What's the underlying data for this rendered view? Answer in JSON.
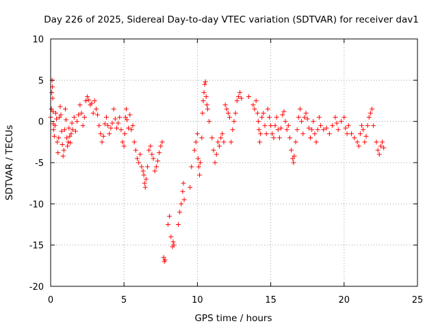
{
  "chart_data": {
    "type": "scatter",
    "title": "Day 226 of 2025, Sidereal Day-to-day VTEC variation (SDTVAR) for receiver dav1",
    "xlabel": "GPS time / hours",
    "ylabel": "SDTVAR / TECUs",
    "xlim": [
      0,
      25
    ],
    "ylim": [
      -20,
      10
    ],
    "xticks": [
      0,
      5,
      10,
      15,
      20,
      25
    ],
    "xtick_labels": [
      "0",
      "5",
      "10",
      "15",
      "20",
      "25"
    ],
    "yticks": [
      -20,
      -15,
      -10,
      -5,
      0,
      5,
      10
    ],
    "ytick_labels": [
      "-20",
      "-15",
      "-10",
      "-5",
      "0",
      "5",
      "10"
    ],
    "grid": true,
    "marker": "+",
    "series": [
      {
        "name": "dav1",
        "color": "#ff0000",
        "points": [
          [
            0.0,
            0.5
          ],
          [
            0.05,
            1.5
          ],
          [
            0.08,
            3.5
          ],
          [
            0.1,
            5.0
          ],
          [
            0.12,
            4.2
          ],
          [
            0.14,
            2.8
          ],
          [
            0.16,
            1.2
          ],
          [
            0.18,
            -0.3
          ],
          [
            0.2,
            -1.0
          ],
          [
            0.25,
            -1.8
          ],
          [
            0.3,
            -0.5
          ],
          [
            0.35,
            1.0
          ],
          [
            0.4,
            0.3
          ],
          [
            0.45,
            -2.5
          ],
          [
            0.5,
            -3.8
          ],
          [
            0.55,
            -2.0
          ],
          [
            0.6,
            0.5
          ],
          [
            0.65,
            1.8
          ],
          [
            0.7,
            0.8
          ],
          [
            0.75,
            -1.2
          ],
          [
            0.8,
            -2.8
          ],
          [
            0.85,
            -4.2
          ],
          [
            0.9,
            -3.5
          ],
          [
            0.95,
            -1.0
          ],
          [
            1.0,
            1.5
          ],
          [
            1.05,
            0.2
          ],
          [
            1.1,
            -2.0
          ],
          [
            1.15,
            -3.0
          ],
          [
            1.2,
            -2.5
          ],
          [
            1.25,
            -0.8
          ],
          [
            1.3,
            -1.8
          ],
          [
            1.35,
            -2.6
          ],
          [
            1.4,
            -1.5
          ],
          [
            1.45,
            -0.2
          ],
          [
            1.5,
            -1.0
          ],
          [
            1.6,
            0.5
          ],
          [
            1.7,
            -1.2
          ],
          [
            1.8,
            0.0
          ],
          [
            1.9,
            0.8
          ],
          [
            2.0,
            2.0
          ],
          [
            2.1,
            1.0
          ],
          [
            2.2,
            -0.5
          ],
          [
            2.3,
            0.5
          ],
          [
            2.4,
            2.5
          ],
          [
            2.5,
            3.0
          ],
          [
            2.6,
            2.6
          ],
          [
            2.7,
            2.0
          ],
          [
            2.8,
            2.2
          ],
          [
            2.9,
            1.0
          ],
          [
            3.0,
            2.5
          ],
          [
            3.1,
            1.5
          ],
          [
            3.2,
            0.8
          ],
          [
            3.3,
            -0.5
          ],
          [
            3.4,
            -1.5
          ],
          [
            3.5,
            -2.5
          ],
          [
            3.6,
            -1.8
          ],
          [
            3.7,
            -0.3
          ],
          [
            3.8,
            0.5
          ],
          [
            3.9,
            -0.5
          ],
          [
            4.0,
            -1.5
          ],
          [
            4.1,
            -0.8
          ],
          [
            4.2,
            -0.2
          ],
          [
            4.3,
            1.5
          ],
          [
            4.4,
            0.3
          ],
          [
            4.5,
            -0.8
          ],
          [
            4.6,
            -0.2
          ],
          [
            4.7,
            0.5
          ],
          [
            4.8,
            -1.0
          ],
          [
            4.9,
            -2.5
          ],
          [
            5.0,
            -3.0
          ],
          [
            5.05,
            -1.5
          ],
          [
            5.1,
            0.5
          ],
          [
            5.15,
            1.5
          ],
          [
            5.2,
            0.2
          ],
          [
            5.3,
            -0.8
          ],
          [
            5.4,
            0.8
          ],
          [
            5.5,
            -1.0
          ],
          [
            5.6,
            -0.5
          ],
          [
            5.7,
            -2.5
          ],
          [
            5.8,
            -3.5
          ],
          [
            5.9,
            -4.5
          ],
          [
            6.0,
            -5.0
          ],
          [
            6.1,
            -4.0
          ],
          [
            6.2,
            -5.5
          ],
          [
            6.3,
            -6.0
          ],
          [
            6.35,
            -6.5
          ],
          [
            6.4,
            -7.5
          ],
          [
            6.45,
            -8.0
          ],
          [
            6.5,
            -7.0
          ],
          [
            6.6,
            -5.5
          ],
          [
            6.7,
            -3.5
          ],
          [
            6.8,
            -3.0
          ],
          [
            6.9,
            -4.0
          ],
          [
            7.0,
            -4.5
          ],
          [
            7.1,
            -6.0
          ],
          [
            7.2,
            -5.5
          ],
          [
            7.3,
            -4.8
          ],
          [
            7.4,
            -3.8
          ],
          [
            7.5,
            -3.0
          ],
          [
            7.6,
            -2.5
          ],
          [
            7.7,
            -16.5
          ],
          [
            7.75,
            -17.0
          ],
          [
            7.8,
            -16.8
          ],
          [
            8.0,
            -12.5
          ],
          [
            8.1,
            -11.5
          ],
          [
            8.2,
            -14.0
          ],
          [
            8.3,
            -15.2
          ],
          [
            8.35,
            -14.6
          ],
          [
            8.4,
            -15.0
          ],
          [
            8.7,
            -12.5
          ],
          [
            8.8,
            -11.0
          ],
          [
            8.9,
            -10.0
          ],
          [
            9.0,
            -8.5
          ],
          [
            9.05,
            -7.5
          ],
          [
            9.1,
            -9.5
          ],
          [
            9.5,
            -8.0
          ],
          [
            9.6,
            -5.5
          ],
          [
            9.8,
            -3.5
          ],
          [
            9.9,
            -2.5
          ],
          [
            10.0,
            -1.5
          ],
          [
            10.05,
            -4.5
          ],
          [
            10.1,
            -5.5
          ],
          [
            10.15,
            -6.5
          ],
          [
            10.2,
            -5.0
          ],
          [
            10.3,
            -2.0
          ],
          [
            10.35,
            1.0
          ],
          [
            10.4,
            2.5
          ],
          [
            10.45,
            3.5
          ],
          [
            10.5,
            4.5
          ],
          [
            10.55,
            4.8
          ],
          [
            10.6,
            3.0
          ],
          [
            10.65,
            2.0
          ],
          [
            10.7,
            1.5
          ],
          [
            10.8,
            0.0
          ],
          [
            11.0,
            -2.0
          ],
          [
            11.1,
            -3.5
          ],
          [
            11.2,
            -5.0
          ],
          [
            11.3,
            -4.0
          ],
          [
            11.4,
            -2.5
          ],
          [
            11.5,
            -3.0
          ],
          [
            11.6,
            -2.0
          ],
          [
            11.7,
            -1.5
          ],
          [
            11.8,
            -2.5
          ],
          [
            11.9,
            2.0
          ],
          [
            12.0,
            1.5
          ],
          [
            12.1,
            1.0
          ],
          [
            12.2,
            0.5
          ],
          [
            12.3,
            -2.5
          ],
          [
            12.4,
            -1.0
          ],
          [
            12.5,
            0.0
          ],
          [
            12.6,
            1.0
          ],
          [
            12.7,
            2.5
          ],
          [
            12.8,
            3.0
          ],
          [
            12.9,
            3.5
          ],
          [
            13.0,
            2.8
          ],
          [
            13.5,
            3.0
          ],
          [
            13.8,
            2.0
          ],
          [
            13.9,
            1.5
          ],
          [
            14.0,
            2.5
          ],
          [
            14.1,
            1.0
          ],
          [
            14.15,
            0.0
          ],
          [
            14.2,
            -1.0
          ],
          [
            14.25,
            -2.5
          ],
          [
            14.3,
            -1.5
          ],
          [
            14.4,
            0.5
          ],
          [
            14.5,
            1.0
          ],
          [
            14.6,
            -0.5
          ],
          [
            14.7,
            -1.5
          ],
          [
            14.8,
            1.5
          ],
          [
            14.9,
            0.5
          ],
          [
            15.0,
            -0.5
          ],
          [
            15.1,
            -1.5
          ],
          [
            15.2,
            -2.0
          ],
          [
            15.3,
            -0.5
          ],
          [
            15.4,
            0.5
          ],
          [
            15.5,
            -1.0
          ],
          [
            15.6,
            -2.0
          ],
          [
            15.7,
            -0.8
          ],
          [
            15.8,
            0.8
          ],
          [
            15.9,
            1.2
          ],
          [
            16.0,
            0.0
          ],
          [
            16.1,
            -1.0
          ],
          [
            16.2,
            -0.5
          ],
          [
            16.3,
            -2.0
          ],
          [
            16.4,
            -3.5
          ],
          [
            16.5,
            -4.5
          ],
          [
            16.55,
            -5.0
          ],
          [
            16.6,
            -4.2
          ],
          [
            16.7,
            -2.5
          ],
          [
            16.8,
            -1.0
          ],
          [
            16.9,
            0.5
          ],
          [
            17.0,
            1.5
          ],
          [
            17.1,
            0.0
          ],
          [
            17.2,
            -1.5
          ],
          [
            17.3,
            0.5
          ],
          [
            17.4,
            1.0
          ],
          [
            17.5,
            0.3
          ],
          [
            17.6,
            -0.8
          ],
          [
            17.7,
            -2.0
          ],
          [
            17.8,
            -1.0
          ],
          [
            17.9,
            0.0
          ],
          [
            18.0,
            -1.5
          ],
          [
            18.1,
            -2.5
          ],
          [
            18.2,
            -1.0
          ],
          [
            18.3,
            0.5
          ],
          [
            18.4,
            -0.5
          ],
          [
            18.6,
            -1.0
          ],
          [
            18.8,
            -0.8
          ],
          [
            19.0,
            -1.5
          ],
          [
            19.2,
            -0.5
          ],
          [
            19.4,
            0.5
          ],
          [
            19.5,
            -0.2
          ],
          [
            19.6,
            -1.0
          ],
          [
            19.8,
            0.0
          ],
          [
            20.0,
            0.5
          ],
          [
            20.1,
            -0.8
          ],
          [
            20.2,
            -1.5
          ],
          [
            20.3,
            -0.5
          ],
          [
            20.5,
            -1.5
          ],
          [
            20.7,
            -2.0
          ],
          [
            20.9,
            -2.5
          ],
          [
            21.0,
            -3.0
          ],
          [
            21.1,
            -1.5
          ],
          [
            21.2,
            -0.5
          ],
          [
            21.3,
            -1.0
          ],
          [
            21.4,
            -2.5
          ],
          [
            21.5,
            -1.8
          ],
          [
            21.6,
            -0.5
          ],
          [
            21.7,
            0.5
          ],
          [
            21.8,
            1.0
          ],
          [
            21.9,
            1.5
          ],
          [
            22.0,
            -0.5
          ],
          [
            22.2,
            -2.5
          ],
          [
            22.3,
            -3.5
          ],
          [
            22.4,
            -4.0
          ],
          [
            22.5,
            -3.0
          ],
          [
            22.6,
            -2.5
          ],
          [
            22.7,
            -3.2
          ]
        ]
      }
    ]
  }
}
